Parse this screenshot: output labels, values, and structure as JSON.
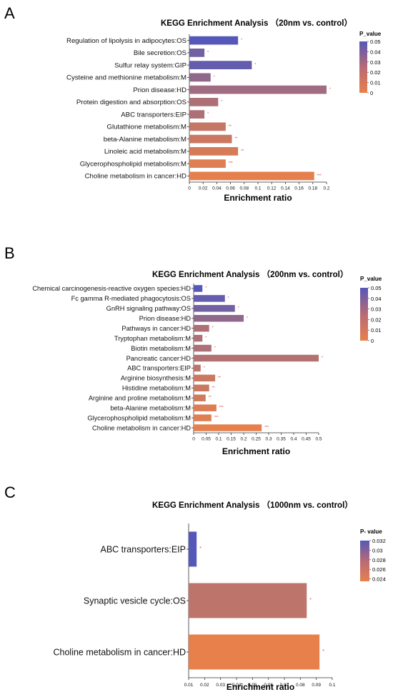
{
  "chart_data": [
    {
      "panel": "A",
      "type": "bar",
      "orientation": "horizontal",
      "title": "KEGG Enrichment Analysis （20nm  vs. control）",
      "xlabel": "Enrichment ratio",
      "xlim": [
        0,
        0.2
      ],
      "xticks": [
        "0",
        "0.02",
        "0.04",
        "0.06",
        "0.08",
        "0.1",
        "0.12",
        "0.14",
        "0.16",
        "0.18",
        "0.2"
      ],
      "categories": [
        "Regulation of lipolysis in adipocytes:OS",
        "Bile secretion:OS",
        "Sulfur relay system:GIP",
        "Cysteine and methionine metabolism:M",
        "Prion disease:HD",
        "Protein digestion and absorption:OS",
        "ABC transporters:EIP",
        "Glutathione metabolism:M",
        "beta-Alanine metabolism:M",
        "Linoleic acid metabolism:M",
        "Glycerophospholipid metabolism:M",
        "Choline metabolism in cancer:HD"
      ],
      "values": [
        0.071,
        0.022,
        0.091,
        0.031,
        0.2,
        0.042,
        0.022,
        0.053,
        0.062,
        0.071,
        0.053,
        0.182
      ],
      "p_values": [
        0.05,
        0.04,
        0.045,
        0.03,
        0.025,
        0.02,
        0.02,
        0.012,
        0.01,
        0.006,
        0.003,
        0.001
      ],
      "significance": [
        "*",
        "*",
        "*",
        "*",
        "*",
        "*",
        "*",
        "**",
        "**",
        "**",
        "***",
        "***"
      ],
      "legend": {
        "title": "P_value",
        "ticks": [
          "0.05",
          "0.04",
          "0.03",
          "0.02",
          "0.01",
          "0"
        ],
        "range": [
          0,
          0.05
        ],
        "low_color": "#e8804b",
        "high_color": "#5558b8",
        "placement": "right"
      }
    },
    {
      "panel": "B",
      "type": "bar",
      "orientation": "horizontal",
      "title": "KEGG Enrichment Analysis （200nm  vs. control）",
      "xlabel": "Enrichment ratio",
      "xlim": [
        0,
        0.5
      ],
      "xticks": [
        "0",
        "0.05",
        "0.1",
        "0.15",
        "0.2",
        "0.25",
        "0.3",
        "0.35",
        "0.4",
        "0.45",
        "0.5"
      ],
      "categories": [
        "Chemical carcinogenesis-reactive oxygen species:HD",
        "Fc gamma R-mediated phagocytosis:OS",
        "GnRH signaling pathway:OS",
        "Prion disease:HD",
        "Pathways in cancer:HD",
        "Tryptophan metabolism:M",
        "Biotin metabolism:M",
        "Pancreatic cancer:HD",
        "ABC transporters:EIP",
        "Arginine biosynthesis:M",
        "Histidine metabolism:M",
        "Arginine and proline metabolism:M",
        "beta-Alanine metabolism:M",
        "Glycerophospholipid metabolism:M",
        "Choline metabolism in cancer:HD"
      ],
      "values": [
        0.035,
        0.125,
        0.165,
        0.2,
        0.062,
        0.035,
        0.071,
        0.5,
        0.028,
        0.086,
        0.062,
        0.048,
        0.091,
        0.071,
        0.272
      ],
      "p_values": [
        0.05,
        0.045,
        0.04,
        0.03,
        0.02,
        0.02,
        0.02,
        0.018,
        0.015,
        0.01,
        0.01,
        0.008,
        0.004,
        0.003,
        0.001
      ],
      "significance": [
        "*",
        "*",
        "*",
        "*",
        "*",
        "*",
        "*",
        "*",
        "*",
        "**",
        "**",
        "**",
        "***",
        "***",
        "***"
      ],
      "legend": {
        "title": "P_value",
        "ticks": [
          "0.05",
          "0.04",
          "0.03",
          "0.02",
          "0.01",
          "0"
        ],
        "range": [
          0,
          0.05
        ],
        "low_color": "#e8804b",
        "high_color": "#5558b8",
        "placement": "right"
      }
    },
    {
      "panel": "C",
      "type": "bar",
      "orientation": "horizontal",
      "title": "KEGG Enrichment Analysis （1000nm  vs. control）",
      "xlabel": "Enrichment ratio",
      "xlim": [
        0.01,
        0.1
      ],
      "xticks": [
        "0.01",
        "0.02",
        "0.03",
        "0.04",
        "0.05",
        "0.06",
        "0.07",
        "0.08",
        "0.09",
        "0.1"
      ],
      "categories": [
        "ABC transporters:EIP",
        "Synaptic vesicle cycle:OS",
        "Choline metabolism in cancer:HD"
      ],
      "values": [
        0.015,
        0.084,
        0.092
      ],
      "p_values": [
        0.032,
        0.026,
        0.0235
      ],
      "significance": [
        "*",
        "*",
        "*"
      ],
      "legend": {
        "title": "P- value",
        "ticks": [
          "0.032",
          "0.03",
          "0.028",
          "0.026",
          "0.024"
        ],
        "range": [
          0.0235,
          0.032
        ],
        "low_color": "#e8804b",
        "high_color": "#5558b8",
        "placement": "right"
      }
    }
  ]
}
